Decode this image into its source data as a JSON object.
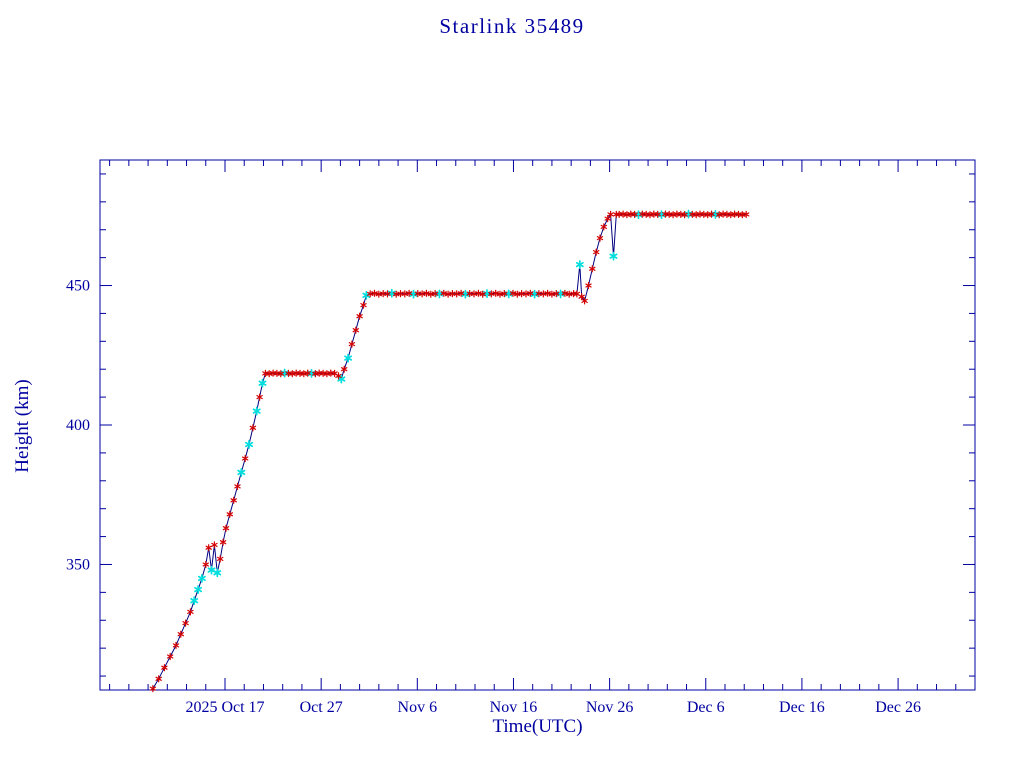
{
  "chart_data": {
    "type": "line",
    "title": "Starlink 35489",
    "xlabel": "Time(UTC)",
    "ylabel": "Height (km)",
    "grid": false,
    "legend_position": "none",
    "xlim": [
      4,
      95
    ],
    "ylim": [
      305,
      495
    ],
    "x_minor_step": 2,
    "y_minor_step": 10,
    "x_major_ticks": [
      {
        "value": 17,
        "label": "2025 Oct 17"
      },
      {
        "value": 27,
        "label": "Oct 27"
      },
      {
        "value": 37,
        "label": "Nov 6"
      },
      {
        "value": 47,
        "label": "Nov 16"
      },
      {
        "value": 57,
        "label": "Nov 26"
      },
      {
        "value": 67,
        "label": "Dec 6"
      },
      {
        "value": 77,
        "label": "Dec 16"
      },
      {
        "value": 87,
        "label": "Dec 26"
      }
    ],
    "y_major_ticks": [
      {
        "value": 350,
        "label": "350"
      },
      {
        "value": 400,
        "label": "400"
      },
      {
        "value": 450,
        "label": "450"
      }
    ],
    "colors": {
      "text": "#0000a0",
      "frame": "#0000a0",
      "line": "#000080",
      "marker_primary": "#d40000",
      "marker_secondary": "#00dede"
    },
    "marker_codes": {
      "0": "red-asterisk",
      "1": "cyan-asterisk"
    },
    "points": [
      [
        9.5,
        305.5,
        0
      ],
      [
        10.1,
        309,
        0
      ],
      [
        10.7,
        313,
        0
      ],
      [
        11.3,
        317,
        0
      ],
      [
        11.9,
        321,
        0
      ],
      [
        12.4,
        325,
        0
      ],
      [
        12.9,
        329,
        0
      ],
      [
        13.4,
        333,
        0
      ],
      [
        13.8,
        337,
        1
      ],
      [
        14.2,
        341,
        1
      ],
      [
        14.6,
        345,
        1
      ],
      [
        15.0,
        350,
        0
      ],
      [
        15.3,
        356,
        0
      ],
      [
        15.6,
        348,
        1
      ],
      [
        15.9,
        357,
        0
      ],
      [
        16.2,
        347,
        1
      ],
      [
        16.5,
        352,
        0
      ],
      [
        16.8,
        358,
        0
      ],
      [
        17.1,
        363,
        0
      ],
      [
        17.5,
        368,
        0
      ],
      [
        17.9,
        373,
        0
      ],
      [
        18.3,
        378,
        0
      ],
      [
        18.7,
        383,
        1
      ],
      [
        19.1,
        388,
        0
      ],
      [
        19.5,
        393,
        1
      ],
      [
        19.9,
        399,
        0
      ],
      [
        20.3,
        405,
        1
      ],
      [
        20.6,
        410,
        0
      ],
      [
        20.9,
        415,
        1
      ],
      [
        21.2,
        418.5,
        0
      ],
      [
        21.6,
        418.4,
        0
      ],
      [
        22.0,
        418.6,
        0
      ],
      [
        22.4,
        418.5,
        0
      ],
      [
        22.8,
        418.4,
        0
      ],
      [
        23.2,
        418.6,
        1
      ],
      [
        23.6,
        418.5,
        0
      ],
      [
        24.0,
        418.4,
        0
      ],
      [
        24.4,
        418.6,
        0
      ],
      [
        24.8,
        418.5,
        0
      ],
      [
        25.2,
        418.4,
        0
      ],
      [
        25.6,
        418.6,
        0
      ],
      [
        26.0,
        418.5,
        1
      ],
      [
        26.4,
        418.4,
        0
      ],
      [
        26.8,
        418.6,
        0
      ],
      [
        27.2,
        418.5,
        0
      ],
      [
        27.6,
        418.4,
        0
      ],
      [
        28.0,
        418.6,
        0
      ],
      [
        28.4,
        418.5,
        0
      ],
      [
        28.8,
        417.6,
        0
      ],
      [
        29.1,
        416.5,
        1
      ],
      [
        29.4,
        420,
        0
      ],
      [
        29.8,
        424,
        1
      ],
      [
        30.2,
        429,
        0
      ],
      [
        30.6,
        434,
        0
      ],
      [
        31.0,
        439,
        0
      ],
      [
        31.4,
        443,
        0
      ],
      [
        31.7,
        446.5,
        1
      ],
      [
        32.1,
        447,
        0
      ],
      [
        32.55,
        447.2,
        0
      ],
      [
        33,
        446.9,
        0
      ],
      [
        33.45,
        447.1,
        0
      ],
      [
        33.9,
        447,
        0
      ],
      [
        34.35,
        447.2,
        1
      ],
      [
        34.8,
        446.9,
        0
      ],
      [
        35.25,
        447.1,
        0
      ],
      [
        35.7,
        447,
        0
      ],
      [
        36.15,
        447.2,
        0
      ],
      [
        36.6,
        446.9,
        1
      ],
      [
        37.05,
        447.1,
        0
      ],
      [
        37.5,
        447,
        0
      ],
      [
        37.95,
        447.2,
        0
      ],
      [
        38.4,
        446.9,
        0
      ],
      [
        38.85,
        447.1,
        0
      ],
      [
        39.3,
        447,
        1
      ],
      [
        39.75,
        447.2,
        0
      ],
      [
        40.2,
        446.9,
        0
      ],
      [
        40.65,
        447.1,
        0
      ],
      [
        41.1,
        447,
        0
      ],
      [
        41.55,
        447.2,
        0
      ],
      [
        42,
        446.9,
        1
      ],
      [
        42.45,
        447.1,
        0
      ],
      [
        42.9,
        447,
        0
      ],
      [
        43.35,
        447.2,
        0
      ],
      [
        43.8,
        446.9,
        0
      ],
      [
        44.25,
        447.1,
        1
      ],
      [
        44.7,
        447,
        0
      ],
      [
        45.15,
        447.2,
        0
      ],
      [
        45.6,
        446.9,
        0
      ],
      [
        46.05,
        447.1,
        0
      ],
      [
        46.5,
        447,
        1
      ],
      [
        46.95,
        447.2,
        0
      ],
      [
        47.4,
        446.9,
        0
      ],
      [
        47.85,
        447.1,
        0
      ],
      [
        48.3,
        447,
        0
      ],
      [
        48.75,
        447.2,
        0
      ],
      [
        49.2,
        446.9,
        1
      ],
      [
        49.65,
        447.1,
        0
      ],
      [
        50.1,
        447,
        0
      ],
      [
        50.55,
        447.2,
        0
      ],
      [
        51,
        446.9,
        0
      ],
      [
        51.45,
        447.1,
        0
      ],
      [
        51.9,
        447,
        1
      ],
      [
        52.35,
        447.2,
        0
      ],
      [
        52.8,
        446.9,
        0
      ],
      [
        53.25,
        447.1,
        0
      ],
      [
        53.6,
        447,
        0
      ],
      [
        53.9,
        457.5,
        1
      ],
      [
        54.1,
        446,
        0
      ],
      [
        54.4,
        444.5,
        0
      ],
      [
        54.8,
        450,
        0
      ],
      [
        55.2,
        456,
        0
      ],
      [
        55.6,
        462,
        0
      ],
      [
        56,
        467,
        0
      ],
      [
        56.4,
        471,
        0
      ],
      [
        56.8,
        474,
        0
      ],
      [
        57.1,
        475.5,
        0
      ],
      [
        57.4,
        460.5,
        1
      ],
      [
        57.7,
        475.5,
        0
      ],
      [
        58,
        475.5,
        0
      ],
      [
        58.4,
        475.6,
        0
      ],
      [
        58.8,
        475.4,
        0
      ],
      [
        59.2,
        475.6,
        0
      ],
      [
        59.6,
        475.5,
        0
      ],
      [
        60,
        475.4,
        1
      ],
      [
        60.4,
        475.6,
        0
      ],
      [
        60.8,
        475.5,
        0
      ],
      [
        61.2,
        475.4,
        0
      ],
      [
        61.6,
        475.6,
        0
      ],
      [
        62,
        475.5,
        0
      ],
      [
        62.4,
        475.4,
        1
      ],
      [
        62.8,
        475.6,
        0
      ],
      [
        63.2,
        475.5,
        0
      ],
      [
        63.6,
        475.4,
        0
      ],
      [
        64,
        475.6,
        0
      ],
      [
        64.4,
        475.5,
        0
      ],
      [
        64.8,
        475.4,
        0
      ],
      [
        65.2,
        475.6,
        1
      ],
      [
        65.6,
        475.5,
        0
      ],
      [
        66,
        475.4,
        0
      ],
      [
        66.4,
        475.6,
        0
      ],
      [
        66.8,
        475.5,
        0
      ],
      [
        67.2,
        475.4,
        0
      ],
      [
        67.6,
        475.6,
        0
      ],
      [
        68,
        475.5,
        1
      ],
      [
        68.4,
        475.4,
        0
      ],
      [
        68.8,
        475.6,
        0
      ],
      [
        69.2,
        475.5,
        0
      ],
      [
        69.6,
        475.4,
        0
      ],
      [
        70,
        475.6,
        0
      ],
      [
        70.4,
        475.5,
        0
      ],
      [
        70.8,
        475.4,
        0
      ],
      [
        71.2,
        475.5,
        0
      ]
    ]
  }
}
